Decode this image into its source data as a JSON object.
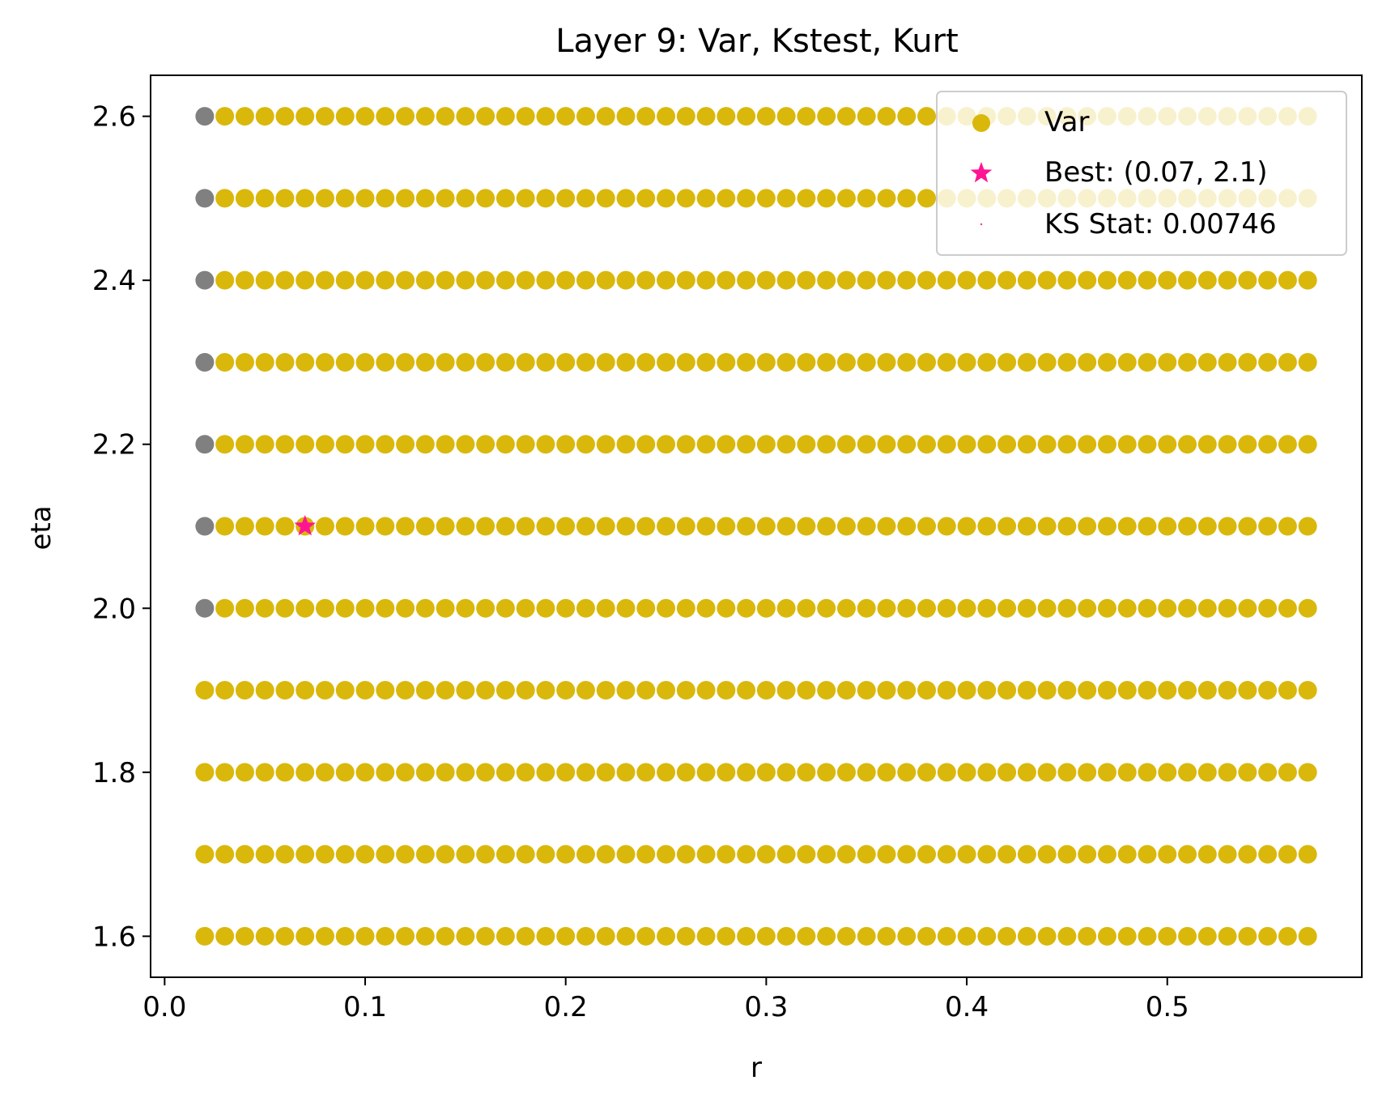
{
  "chart_data": {
    "type": "scatter",
    "title": "Layer 9: Var, Kstest, Kurt",
    "xlabel": "r",
    "ylabel": "eta",
    "xlim": [
      -0.007,
      0.597
    ],
    "ylim": [
      1.55,
      2.65
    ],
    "xticks": [
      0.0,
      0.1,
      0.2,
      0.3,
      0.4,
      0.5
    ],
    "xtick_labels": [
      "0.0",
      "0.1",
      "0.2",
      "0.3",
      "0.4",
      "0.5"
    ],
    "yticks": [
      1.6,
      1.8,
      2.0,
      2.2,
      2.4,
      2.6
    ],
    "ytick_labels": [
      "1.6",
      "1.8",
      "2.0",
      "2.2",
      "2.4",
      "2.6"
    ],
    "grid": false,
    "legend_position": "top-right",
    "colors": {
      "var": "#d9b80b",
      "gray": "#808080",
      "best": "#ff1493",
      "ks": "#e8475f"
    },
    "series": [
      {
        "name": "Var",
        "marker": "circle",
        "r": [
          0.02,
          0.03,
          0.04,
          0.05,
          0.06,
          0.07,
          0.08,
          0.09,
          0.1,
          0.11,
          0.12,
          0.13,
          0.14,
          0.15,
          0.16,
          0.17,
          0.18,
          0.19,
          0.2,
          0.21,
          0.22,
          0.23,
          0.24,
          0.25,
          0.26,
          0.27,
          0.28,
          0.29,
          0.3,
          0.31,
          0.32,
          0.33,
          0.34,
          0.35,
          0.36,
          0.37,
          0.38,
          0.39,
          0.4,
          0.41,
          0.42,
          0.43,
          0.44,
          0.45,
          0.46,
          0.47,
          0.48,
          0.49,
          0.5,
          0.51,
          0.52,
          0.53,
          0.54,
          0.55,
          0.56,
          0.57
        ],
        "eta": [
          1.6,
          1.7,
          1.8,
          1.9,
          2.0,
          2.1,
          2.2,
          2.3,
          2.4,
          2.5,
          2.6
        ],
        "gray_points": [
          [
            0.02,
            2.0
          ],
          [
            0.02,
            2.1
          ],
          [
            0.02,
            2.2
          ],
          [
            0.02,
            2.3
          ],
          [
            0.02,
            2.4
          ],
          [
            0.02,
            2.5
          ],
          [
            0.02,
            2.6
          ]
        ]
      },
      {
        "name": "Best: (0.07, 2.1)",
        "marker": "star",
        "x": 0.07,
        "y": 2.1
      },
      {
        "name": "KS Stat: 0.00746",
        "marker": "point"
      }
    ]
  }
}
